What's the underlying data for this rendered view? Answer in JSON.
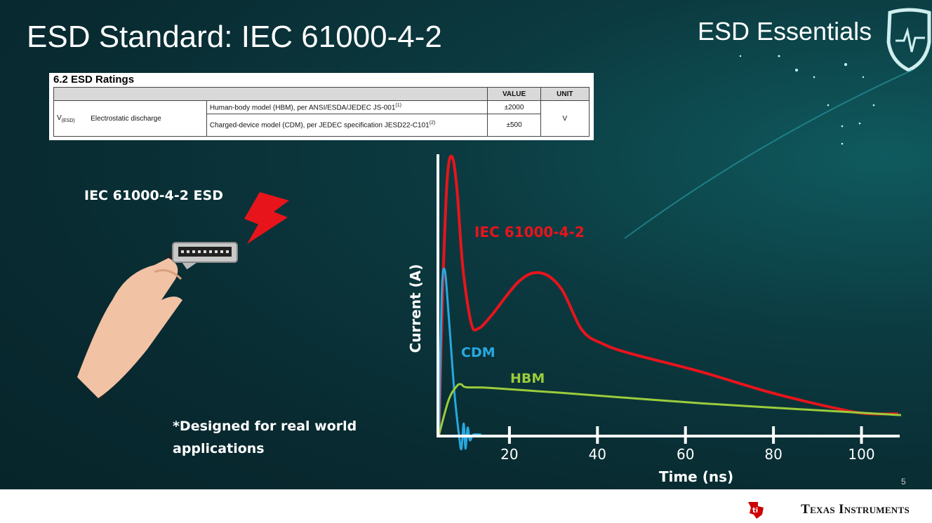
{
  "slide": {
    "title": "ESD Standard: IEC 61000-4-2",
    "brand": "ESD Essentials",
    "page_number": "5",
    "footer_company": "Texas Instruments",
    "left_label": "IEC 61000-4-2 ESD",
    "note_line1": "*Designed for real world",
    "note_line2": "applications"
  },
  "datasheet_table": {
    "caption": "6.2   ESD Ratings",
    "headers": {
      "value": "VALUE",
      "unit": "UNIT"
    },
    "symbol": "V",
    "symbol_sub": "(ESD)",
    "parameter": "Electrostatic discharge",
    "rows": [
      {
        "condition": "Human-body model (HBM), per ANSI/ESDA/JEDEC JS-001",
        "note": "(1)",
        "value": "±2000"
      },
      {
        "condition": "Charged-device model (CDM), per JEDEC specification JESD22-C101",
        "note": "(2)",
        "value": "±500"
      }
    ],
    "unit": "V"
  },
  "colors": {
    "iec": "#e8141c",
    "cdm": "#29a8e0",
    "hbm": "#9ccc3c",
    "axis": "#ffffff"
  },
  "chart_data": {
    "type": "line",
    "xlabel": "Time (ns)",
    "ylabel": "Current (A)",
    "xticks": [
      20,
      40,
      60,
      80,
      100
    ],
    "xlim": [
      4,
      109
    ],
    "ylim": [
      0,
      100
    ],
    "grid": false,
    "series": [
      {
        "name": "IEC 61000-4-2",
        "color_key": "iec",
        "x": [
          4.0,
          4.9,
          5.9,
          7.0,
          8.1,
          9.4,
          11.3,
          12.9,
          15.8,
          22.2,
          27.0,
          31.7,
          36.5,
          41.3,
          47.7,
          63.6,
          79.6,
          95.5,
          101.9,
          108.3
        ],
        "y": [
          0,
          55,
          92.5,
          99.5,
          87.5,
          60,
          40,
          38,
          42.5,
          55,
          58,
          52.5,
          37.5,
          32.5,
          29,
          22.5,
          15,
          9,
          7.5,
          7.5
        ]
      },
      {
        "name": "CDM",
        "color_key": "cdm",
        "x": [
          4.0,
          4.6,
          5.3,
          6.2,
          7.5,
          8.6,
          9.1,
          9.6,
          10.0,
          10.5,
          11.0,
          11.8,
          13.6
        ],
        "y": [
          0,
          50,
          59,
          42.5,
          15,
          -1,
          -5,
          4,
          -5,
          2.5,
          -2,
          0,
          0
        ]
      },
      {
        "name": "HBM",
        "color_key": "hbm",
        "x": [
          4.0,
          6.2,
          8.1,
          9.1,
          10.2,
          15.8,
          31.7,
          63.6,
          95.5,
          109
        ],
        "y": [
          0,
          12.5,
          17.5,
          18,
          17,
          16.75,
          15,
          11.25,
          8.25,
          7
        ]
      }
    ]
  }
}
